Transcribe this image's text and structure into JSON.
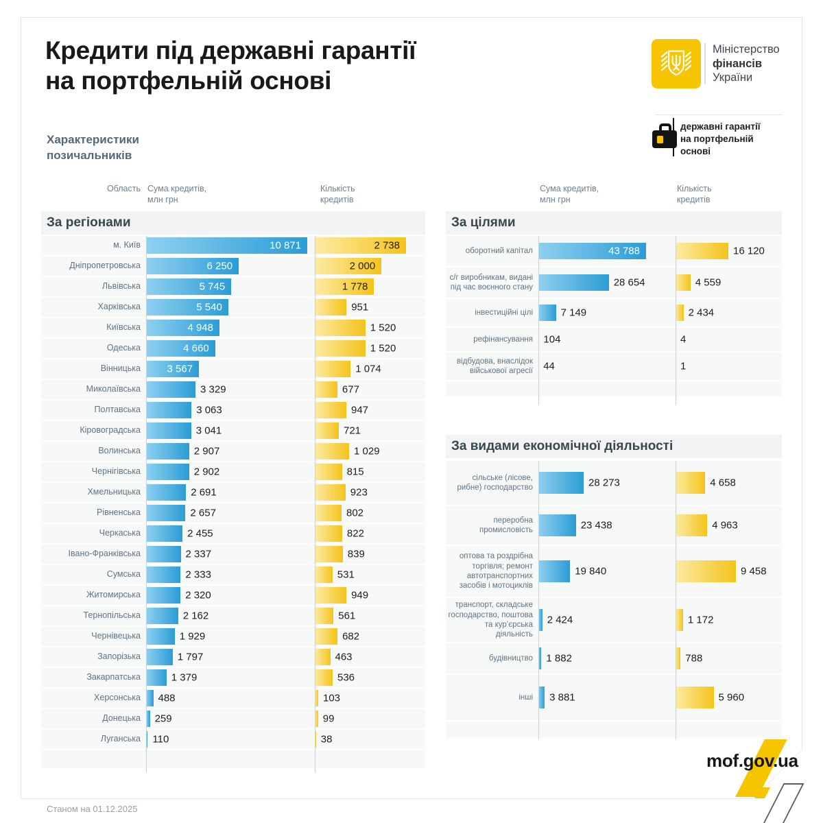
{
  "title": {
    "text": "Кредити під державні гарантії\nна портфельній основі"
  },
  "subtitle": {
    "text": "Характеристики\nпозичальників"
  },
  "logo": {
    "line1": "Міністерство",
    "line2": "фінансів",
    "line3": "України",
    "emblem": "trident-icon",
    "badge_icon": "briefcase-icon",
    "badge_text": "державні гарантії\nна портфельній\nоснові"
  },
  "columns": {
    "region": "Область",
    "sum": "Сума кредитів,\nмлн грн",
    "count": "Кількість\nкредитів"
  },
  "footer": {
    "date_note": "Станом на 01.12.2025",
    "site": "mof.gov.ua"
  },
  "colors": {
    "brand_yellow": "#F6C500",
    "bar_blue_start": "#8FD0F0",
    "bar_blue_end": "#2B9CD6",
    "bar_yellow_start": "#FCEBA4",
    "bar_yellow_end": "#F5C31B",
    "row_stripe": "#F7F8F8",
    "section_header_bg": "#F1F3F4",
    "axis_line": "#C9CFD4",
    "label_gray": "#5E7383",
    "text_dark": "#1D1D1B"
  },
  "chart_data": [
    {
      "type": "bar",
      "orientation": "horizontal",
      "title": "За регіонами",
      "categories": [
        "м. Київ",
        "Дніпропетровська",
        "Львівська",
        "Харківська",
        "Київська",
        "Одеська",
        "Вінницька",
        "Миколаївська",
        "Полтавська",
        "Кіровоградська",
        "Волинська",
        "Чернігівська",
        "Хмельницька",
        "Рівненська",
        "Черкаська",
        "Івано-Франківська",
        "Сумська",
        "Житомирська",
        "Тернопільська",
        "Чернівецька",
        "Запорізька",
        "Закарпатська",
        "Херсонська",
        "Донецька",
        "Луганська"
      ],
      "series": [
        {
          "name": "Сума кредитів, млн грн",
          "values": [
            10871,
            6250,
            5745,
            5540,
            4948,
            4660,
            3567,
            3329,
            3063,
            3041,
            2907,
            2902,
            2691,
            2657,
            2455,
            2337,
            2333,
            2320,
            2162,
            1929,
            1797,
            1379,
            488,
            259,
            110
          ]
        },
        {
          "name": "Кількість кредитів",
          "values": [
            2738,
            2000,
            1778,
            951,
            1520,
            1520,
            1074,
            677,
            947,
            721,
            1029,
            815,
            923,
            802,
            822,
            839,
            531,
            949,
            561,
            682,
            463,
            536,
            103,
            99,
            38
          ]
        }
      ]
    },
    {
      "type": "bar",
      "orientation": "horizontal",
      "title": "За цілями",
      "categories": [
        "оборотний капітал",
        "с/г виробникам, видані під час воєнного стану",
        "інвестиційні цілі",
        "рефінансування",
        "відбудова, внаслідок військової агресії"
      ],
      "series": [
        {
          "name": "Сума кредитів, млн грн",
          "values": [
            43788,
            28654,
            7149,
            104,
            44
          ]
        },
        {
          "name": "Кількість кредитів",
          "values": [
            16120,
            4559,
            2434,
            4,
            1
          ]
        }
      ]
    },
    {
      "type": "bar",
      "orientation": "horizontal",
      "title": "За видами економічної діяльності",
      "categories": [
        "сільське (лісове, рибне) господарство",
        "переробна промисловість",
        "оптова та роздрібна торгівля; ремонт автотранспортних засобів і мотоциклів",
        "транспорт, складське господарство, поштова та кур’єрська діяльність",
        "будівництво",
        "інші"
      ],
      "series": [
        {
          "name": "Сума кредитів, млн грн",
          "values": [
            28273,
            23438,
            19840,
            2424,
            1882,
            3881
          ]
        },
        {
          "name": "Кількість кредитів",
          "values": [
            4658,
            4963,
            9458,
            1172,
            788,
            5960
          ]
        }
      ]
    }
  ]
}
